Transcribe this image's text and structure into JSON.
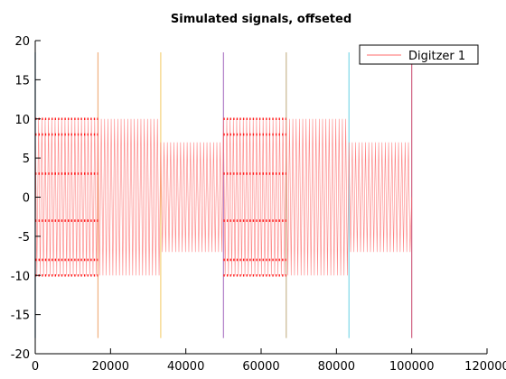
{
  "chart_data": {
    "type": "line",
    "title": "Simulated signals, offseted",
    "xlabel": "",
    "ylabel": "",
    "xlim": [
      0,
      120000
    ],
    "ylim": [
      -20,
      20
    ],
    "xticks": [
      0,
      20000,
      40000,
      60000,
      80000,
      100000,
      120000
    ],
    "xtick_labels": [
      "0",
      "20000",
      "40000",
      "60000",
      "80000",
      "100000",
      "120000"
    ],
    "yticks": [
      -20,
      -15,
      -10,
      -5,
      0,
      5,
      10,
      15,
      20
    ],
    "ytick_labels": [
      "-20",
      "-15",
      "-10",
      "-5",
      "0",
      "5",
      "10",
      "15",
      "20"
    ],
    "grid": false,
    "legend": {
      "placement": "top-right",
      "entries": [
        "Digitzer 1"
      ]
    },
    "series": [
      {
        "name": "Digitzer 1",
        "color": "#ff6b6b",
        "segments": [
          {
            "x_start": 0,
            "x_end": 16667,
            "amplitude": 10,
            "levels": [
              10,
              8,
              3,
              -3,
              -8,
              -10
            ]
          },
          {
            "x_start": 16667,
            "x_end": 33333,
            "amplitude": 10,
            "levels": []
          },
          {
            "x_start": 33333,
            "x_end": 50000,
            "amplitude": 7,
            "levels": []
          },
          {
            "x_start": 50000,
            "x_end": 66667,
            "amplitude": 10,
            "levels": [
              10,
              8,
              3,
              -3,
              -8,
              -10
            ]
          },
          {
            "x_start": 66667,
            "x_end": 83333,
            "amplitude": 10,
            "levels": []
          },
          {
            "x_start": 83333,
            "x_end": 100000,
            "amplitude": 7,
            "levels": []
          }
        ]
      }
    ],
    "markers": [
      {
        "x": 0,
        "color": "#5aa0d8"
      },
      {
        "x": 16667,
        "color": "#f0b080"
      },
      {
        "x": 33333,
        "color": "#f5d27a"
      },
      {
        "x": 50000,
        "color": "#b07cc6"
      },
      {
        "x": 66667,
        "color": "#c8b890"
      },
      {
        "x": 83333,
        "color": "#7fd6e8"
      },
      {
        "x": 100000,
        "color": "#d06080"
      }
    ],
    "marker_range": [
      -18,
      18.5
    ]
  }
}
